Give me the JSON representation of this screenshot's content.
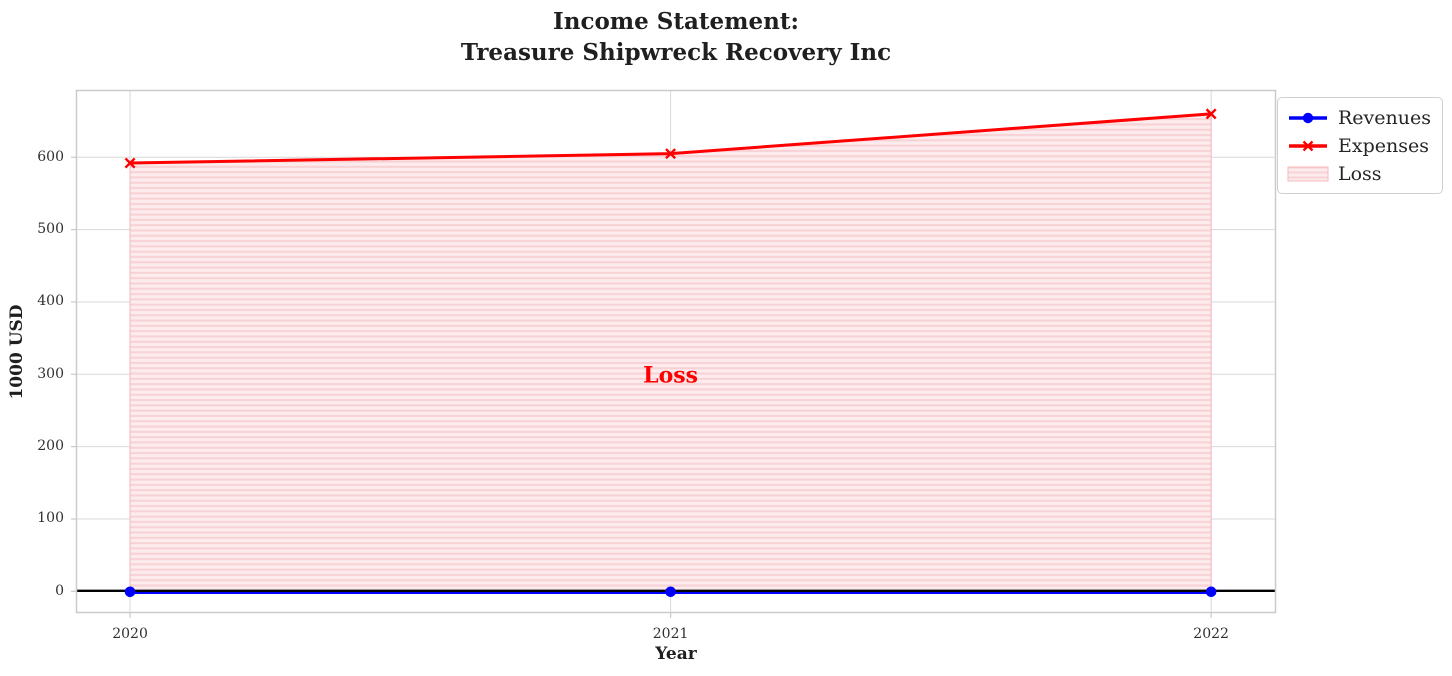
{
  "header": {
    "title_line1": "Income Statement:",
    "title_line2": "Treasure Shipwreck Recovery Inc"
  },
  "chart_data": {
    "type": "line",
    "title": "Income Statement:\nTreasure Shipwreck Recovery Inc",
    "xlabel": "Year",
    "ylabel": "1000 USD",
    "x": [
      2020,
      2021,
      2022
    ],
    "series": [
      {
        "name": "Revenues",
        "color": "#0000ff",
        "marker": "circle",
        "values": [
          0,
          0,
          0
        ]
      },
      {
        "name": "Expenses",
        "color": "#ff0000",
        "marker": "x",
        "values": [
          592,
          605,
          660
        ]
      }
    ],
    "loss_area": {
      "label": "Loss",
      "label_color": "#ff0000",
      "label_x": 2021,
      "label_y": 300,
      "between": [
        "Expenses",
        "Revenues"
      ],
      "fill": "#fdecee",
      "hatch_color": "#f8d2d5",
      "edge_color": "#f5b8bc"
    },
    "zero_line": {
      "y": 0,
      "color": "#000000"
    },
    "xticks": {
      "values": [
        2020,
        2021,
        2022
      ],
      "labels": [
        "2020",
        "2021",
        "2022"
      ]
    },
    "yticks": {
      "values": [
        0,
        100,
        200,
        300,
        400,
        500,
        600
      ],
      "labels": [
        "0",
        "100",
        "200",
        "300",
        "400",
        "500",
        "600"
      ]
    },
    "xlim": [
      2019.9,
      2022.12
    ],
    "ylim": [
      -30,
      693
    ],
    "grid": true,
    "grid_color": "#d9d9d9",
    "tick_color": "#c9c9c9",
    "spine_color": "#cbcbcb",
    "legend_position": "outside-upper-right"
  },
  "legend": {
    "items": [
      {
        "label": "Revenues",
        "color": "#0000ff",
        "marker": "circle"
      },
      {
        "label": "Expenses",
        "color": "#ff0000",
        "marker": "x"
      },
      {
        "label": "Loss",
        "marker": "hatched-patch"
      }
    ]
  }
}
